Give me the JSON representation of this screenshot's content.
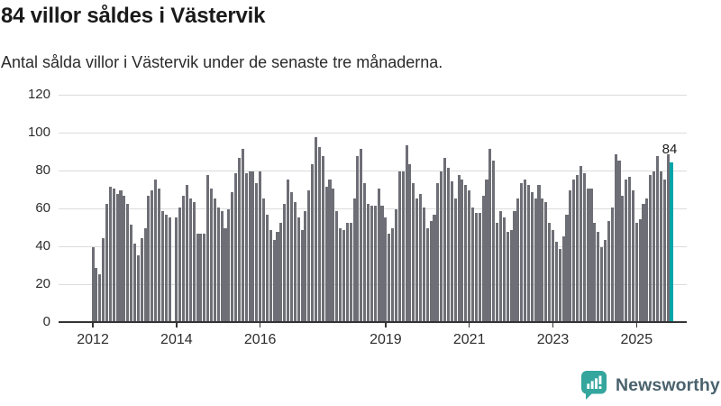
{
  "header": {
    "title": "84 villor såldes i Västervik",
    "subtitle": "Antal sålda villor i Västervik under de senaste tre månaderna."
  },
  "branding": {
    "name": "Newsworthy",
    "logo_color": "#34a69d",
    "text_color": "#4a626e"
  },
  "chart_data": {
    "type": "bar",
    "title": "84 villor såldes i Västervik",
    "subtitle": "Antal sålda villor i Västervik under de senaste tre månaderna.",
    "xlabel": "",
    "ylabel": "",
    "ylim": [
      0,
      120
    ],
    "yticks": [
      0,
      20,
      40,
      60,
      80,
      100,
      120
    ],
    "grid": "horizontal",
    "bar_color": "#6e6e76",
    "axis_color": "#343434",
    "gridline_color": "#dcdcdc",
    "start_month": "2012-01",
    "end_month": "2025-11",
    "note": "one bar per month; null = missing month",
    "year_ticks": [
      {
        "label": "2012",
        "month_index": 0
      },
      {
        "label": "2014",
        "month_index": 24
      },
      {
        "label": "2016",
        "month_index": 48
      },
      {
        "label": "2019",
        "month_index": 84
      },
      {
        "label": "2021",
        "month_index": 108
      },
      {
        "label": "2023",
        "month_index": 132
      },
      {
        "label": "2025",
        "month_index": 156
      }
    ],
    "highlight": {
      "index": 166,
      "value": 84,
      "label": "84",
      "color": "#00a5a8"
    },
    "values": [
      39,
      28,
      25,
      44,
      62,
      71,
      70,
      67,
      69,
      66,
      62,
      51,
      41,
      35,
      44,
      49,
      66,
      69,
      75,
      70,
      58,
      56,
      55,
      null,
      55,
      60,
      66,
      72,
      65,
      63,
      46,
      46,
      46,
      77,
      70,
      65,
      60,
      58,
      49,
      59,
      68,
      78,
      86,
      91,
      78,
      79,
      79,
      73,
      79,
      65,
      56,
      48,
      43,
      47,
      52,
      62,
      75,
      68,
      63,
      55,
      48,
      58,
      69,
      83,
      97,
      92,
      87,
      71,
      75,
      70,
      58,
      49,
      48,
      52,
      52,
      65,
      87,
      91,
      73,
      62,
      61,
      61,
      70,
      61,
      55,
      46,
      49,
      59,
      79,
      79,
      93,
      83,
      73,
      65,
      67,
      60,
      49,
      53,
      56,
      73,
      79,
      86,
      81,
      74,
      65,
      77,
      75,
      72,
      69,
      60,
      57,
      57,
      66,
      75,
      91,
      85,
      52,
      58,
      55,
      47,
      48,
      58,
      65,
      73,
      75,
      72,
      68,
      65,
      72,
      65,
      63,
      52,
      48,
      42,
      38,
      45,
      56,
      69,
      75,
      77,
      82,
      78,
      70,
      70,
      52,
      47,
      39,
      43,
      53,
      60,
      88,
      85,
      66,
      75,
      76,
      69,
      52,
      54,
      62,
      65,
      77,
      79,
      87,
      79,
      75,
      88,
      84
    ]
  }
}
